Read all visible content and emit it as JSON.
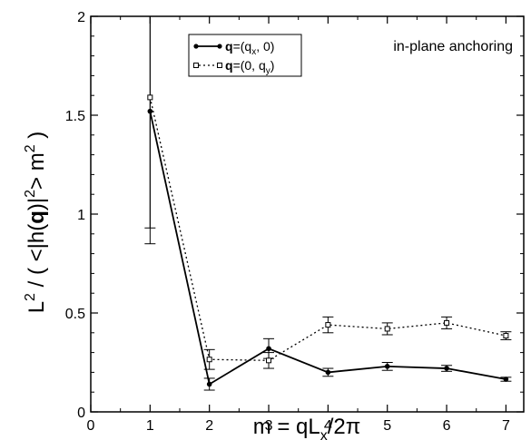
{
  "chart_data": {
    "type": "line",
    "annotation": "in-plane anchoring",
    "xlim": [
      0,
      7.3
    ],
    "ylim": [
      0,
      2
    ],
    "xticks": [
      0,
      1,
      2,
      3,
      4,
      5,
      6,
      7
    ],
    "yticks": [
      0,
      0.5,
      1,
      1.5,
      2
    ],
    "xtick_labels": [
      "0",
      "1",
      "2",
      "3",
      "4",
      "5",
      "6",
      "7"
    ],
    "ytick_labels": [
      "0",
      "0.5",
      "1",
      "1.5",
      "2"
    ],
    "xlabel": {
      "pre": "m = qL",
      "sub": "x",
      "post": "/2π"
    },
    "ylabel": {
      "a": "L",
      "sup1": "2",
      "b": " / ( <|h(",
      "bold": "q",
      "c": ")|",
      "sup2": "2",
      "d": "> m",
      "sup3": "2",
      "e": " )"
    },
    "grid": false,
    "legend_position": "top-center",
    "series": [
      {
        "name": {
          "bold": "q",
          "pre": "=(q",
          "sub": "x",
          "post": ", 0)"
        },
        "style": "solid",
        "marker": "filled-circle",
        "color": "#000000",
        "x": [
          1,
          2,
          3,
          4,
          5,
          6,
          7
        ],
        "y": [
          1.52,
          0.14,
          0.32,
          0.2,
          0.23,
          0.22,
          0.165
        ],
        "err_lo": [
          0.67,
          0.03,
          0.05,
          0.02,
          0.02,
          0.015,
          0.01
        ],
        "err_hi": [
          0.48,
          0.03,
          0.05,
          0.02,
          0.02,
          0.015,
          0.01
        ]
      },
      {
        "name": {
          "bold": "q",
          "pre": "=(0, q",
          "sub": "y",
          "post": ")"
        },
        "style": "dotted",
        "marker": "open-square",
        "color": "#000000",
        "x": [
          1,
          2,
          3,
          4,
          5,
          6,
          7
        ],
        "y": [
          1.59,
          0.265,
          0.26,
          0.44,
          0.42,
          0.45,
          0.385
        ],
        "err_lo": [
          0.66,
          0.05,
          0.04,
          0.04,
          0.03,
          0.03,
          0.02
        ],
        "err_hi": [
          0.41,
          0.05,
          0.04,
          0.04,
          0.03,
          0.03,
          0.02
        ]
      }
    ]
  }
}
